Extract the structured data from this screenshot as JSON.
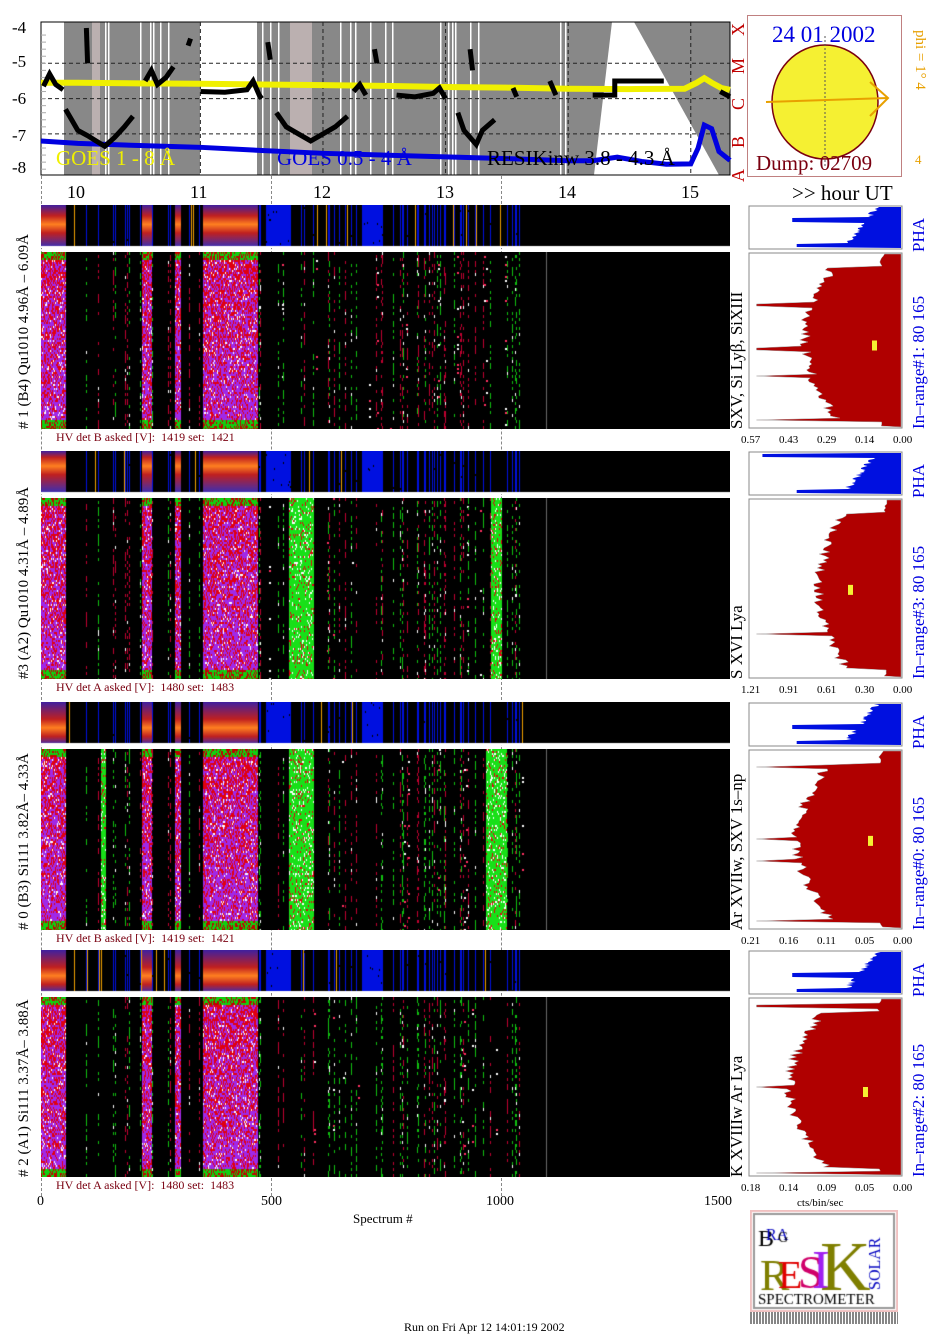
{
  "chart_data": {
    "type": "line",
    "y_ticks": [
      "-4",
      "-5",
      "-6",
      "-7",
      "-8"
    ],
    "ylim": [
      -8.2,
      -3.85
    ],
    "xlim": [
      9.7,
      15.32
    ],
    "x_ticks": [
      "10",
      "11",
      "12",
      "13",
      "14",
      "15"
    ],
    "x_unit_label": ">> hour UT",
    "flare_class_labels": [
      "A",
      "B",
      "C",
      "M",
      "X"
    ],
    "grid": "dashed",
    "series": [
      {
        "name": "GOES 1 - 8 Å",
        "color": "#f0f000",
        "points": [
          [
            9.7,
            -5.55
          ],
          [
            10.0,
            -5.55
          ],
          [
            10.5,
            -5.57
          ],
          [
            11.0,
            -5.58
          ],
          [
            11.5,
            -5.6
          ],
          [
            12.0,
            -5.62
          ],
          [
            12.5,
            -5.64
          ],
          [
            13.0,
            -5.67
          ],
          [
            13.5,
            -5.69
          ],
          [
            14.0,
            -5.72
          ],
          [
            14.5,
            -5.73
          ],
          [
            14.95,
            -5.72
          ],
          [
            15.05,
            -5.55
          ],
          [
            15.11,
            -5.42
          ],
          [
            15.17,
            -5.55
          ],
          [
            15.25,
            -5.7
          ],
          [
            15.32,
            -5.75
          ]
        ]
      },
      {
        "name": "GOES 0.5 - 4 Å",
        "color": "#0000e0",
        "points": [
          [
            9.7,
            -7.2
          ],
          [
            10.0,
            -7.27
          ],
          [
            10.5,
            -7.33
          ],
          [
            11.0,
            -7.38
          ],
          [
            11.5,
            -7.47
          ],
          [
            12.0,
            -7.55
          ],
          [
            12.5,
            -7.6
          ],
          [
            13.0,
            -7.65
          ],
          [
            13.5,
            -7.7
          ],
          [
            14.0,
            -7.76
          ],
          [
            14.2,
            -7.76
          ],
          [
            14.4,
            -7.66
          ],
          [
            14.6,
            -7.78
          ],
          [
            14.8,
            -7.86
          ],
          [
            15.0,
            -7.85
          ],
          [
            15.06,
            -7.4
          ],
          [
            15.11,
            -6.75
          ],
          [
            15.17,
            -6.85
          ],
          [
            15.23,
            -7.5
          ],
          [
            15.32,
            -7.75
          ]
        ]
      },
      {
        "name": "RESIKinw 3.8 - 4.3 Å",
        "color": "#000000",
        "segments": [
          [
            [
              9.72,
              -5.65
            ],
            [
              9.77,
              -5.3
            ],
            [
              9.82,
              -5.6
            ],
            [
              9.88,
              -5.75
            ]
          ],
          [
            [
              9.9,
              -6.3
            ],
            [
              9.95,
              -6.6
            ],
            [
              10.0,
              -6.9
            ],
            [
              10.08,
              -7.05
            ],
            [
              10.15,
              -7.2
            ],
            [
              10.22,
              -7.35
            ],
            [
              10.3,
              -7.1
            ],
            [
              10.38,
              -6.8
            ],
            [
              10.45,
              -6.5
            ]
          ],
          [
            [
              10.07,
              -4.0
            ],
            [
              10.08,
              -5.0
            ]
          ],
          [
            [
              10.55,
              -5.5
            ],
            [
              10.6,
              -5.2
            ],
            [
              10.65,
              -5.6
            ],
            [
              10.72,
              -5.4
            ],
            [
              10.78,
              -5.1
            ]
          ],
          [
            [
              10.9,
              -4.5
            ],
            [
              10.92,
              -4.3
            ]
          ],
          [
            [
              11.0,
              -5.8
            ],
            [
              11.2,
              -5.82
            ],
            [
              11.38,
              -5.75
            ],
            [
              11.43,
              -5.5
            ],
            [
              11.48,
              -5.9
            ],
            [
              11.5,
              -6.0
            ]
          ],
          [
            [
              11.55,
              -4.4
            ],
            [
              11.57,
              -4.9
            ]
          ],
          [
            [
              11.62,
              -6.4
            ],
            [
              11.7,
              -6.8
            ],
            [
              11.8,
              -7.0
            ],
            [
              11.9,
              -7.2
            ],
            [
              12.0,
              -7.0
            ],
            [
              12.1,
              -6.8
            ],
            [
              12.2,
              -6.5
            ]
          ],
          [
            [
              12.25,
              -5.8
            ],
            [
              12.3,
              -5.6
            ],
            [
              12.35,
              -5.9
            ]
          ],
          [
            [
              12.42,
              -4.6
            ],
            [
              12.44,
              -5.0
            ]
          ],
          [
            [
              12.6,
              -5.9
            ],
            [
              12.75,
              -5.95
            ],
            [
              12.9,
              -5.85
            ],
            [
              12.95,
              -5.7
            ],
            [
              13.0,
              -6.0
            ]
          ],
          [
            [
              13.1,
              -6.4
            ],
            [
              13.15,
              -6.9
            ],
            [
              13.25,
              -7.3
            ],
            [
              13.3,
              -6.9
            ],
            [
              13.4,
              -6.6
            ]
          ],
          [
            [
              13.2,
              -4.6
            ],
            [
              13.22,
              -5.2
            ]
          ],
          [
            [
              13.55,
              -5.7
            ],
            [
              13.58,
              -5.95
            ]
          ],
          [
            [
              13.85,
              -5.5
            ],
            [
              13.9,
              -5.9
            ]
          ],
          [
            [
              14.2,
              -5.9
            ],
            [
              14.38,
              -5.9
            ],
            [
              14.38,
              -5.5
            ],
            [
              14.78,
              -5.5
            ]
          ],
          [
            [
              15.24,
              -5.8
            ],
            [
              15.32,
              -5.95
            ]
          ]
        ]
      }
    ],
    "legend": [
      "GOES 1 - 8 Å",
      "GOES 0.5 - 4 Å",
      "RESIKinw 3.8 - 4.3 Å"
    ]
  },
  "sun_panel": {
    "date": "24 01 2002",
    "dump": "Dump: 02709",
    "phi": "phi =  1°  4",
    "phi_bottom": "4",
    "colors": {
      "sun": "#f5f032",
      "border": "#7a0010",
      "arrow": "#e8a000",
      "date": "#0000e0"
    }
  },
  "spectrograms": [
    {
      "label": "# 1 (B4) Qu1010 4.96Å – 6.09Å",
      "hv": "HV det B asked [V]:  1419 set:  1421",
      "lines": "SXV, Si Lyβ, SiXIII",
      "pha": "PHA",
      "range": "In–range#1:   80 165",
      "xticks": [
        "0.57",
        "0.43",
        "0.29",
        "0.14",
        "0.00"
      ]
    },
    {
      "label": "#3 (A2) Qu1010  4.31Å – 4.89Å",
      "hv": "HV det A asked [V]:  1480 set:  1483",
      "lines": "S XVI Lya",
      "pha": "PHA",
      "range": "In–range#3:   80 165",
      "xticks": [
        "1.21",
        "0.91",
        "0.61",
        "0.30",
        "0.00"
      ]
    },
    {
      "label": "# 0 (B3) Si111  3.82Å– 4.33Å",
      "hv": "HV det B asked [V]:  1419 set:  1421",
      "lines": "Ar XVIIw,  SXV 1s–np",
      "pha": "PHA",
      "range": "In–range#0:   80 165",
      "xticks": [
        "0.21",
        "0.16",
        "0.11",
        "0.05",
        "0.00"
      ]
    },
    {
      "label": "# 2 (A1) Si111  3.37Å– 3.88Å",
      "hv": "HV det A asked [V]:  1480 set:  1483",
      "lines": "K XVIIIw  Ar Lya",
      "pha": "PHA",
      "range": "In–range#2:   80 165",
      "xticks": [
        "0.18",
        "0.14",
        "0.09",
        "0.05",
        "0.00"
      ]
    }
  ],
  "x_axis": {
    "ticks": [
      "0",
      "500",
      "1000",
      "1500"
    ],
    "label": "Spectrum #"
  },
  "hist_axis_label": "cts/bin/sec",
  "logo": {
    "text": "BRAGG RESIK SOLAR SPECTROMETER",
    "title": "SPECTROMETER"
  },
  "footer": "Run on Fri Apr 12 14:01:19 2002"
}
